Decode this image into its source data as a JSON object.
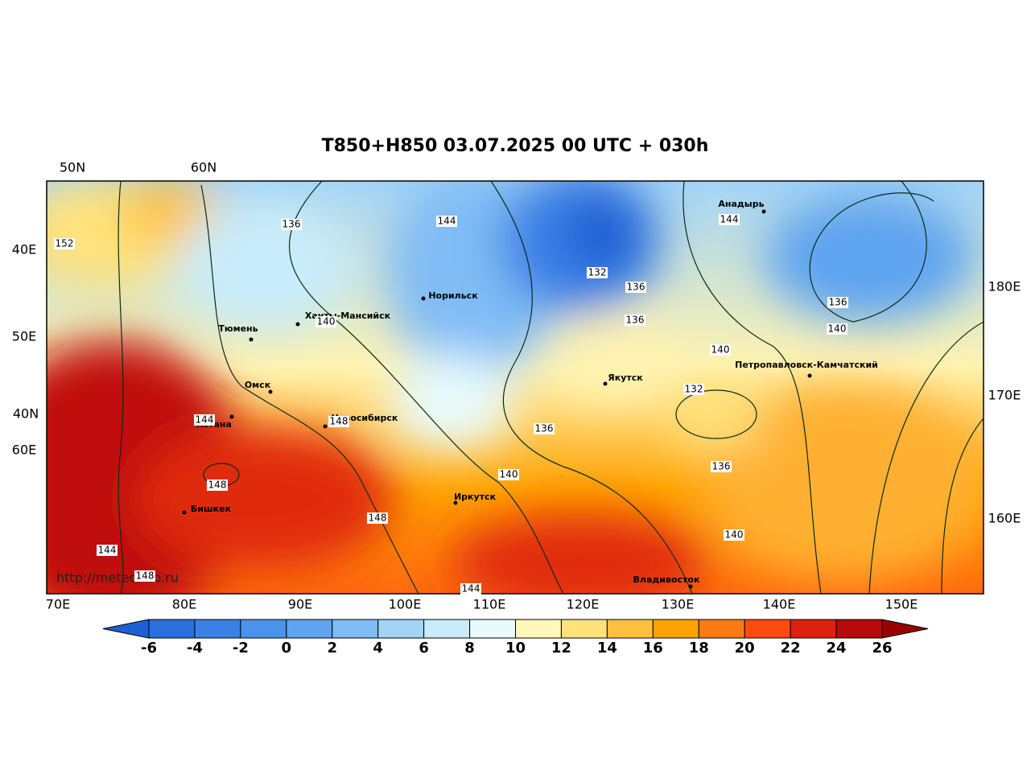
{
  "title": "T850+H850 03.07.2025 00 UTC + 030h",
  "url": "http://meteoinfo.ru",
  "axis_labels": {
    "top": [
      "50N",
      "60N"
    ],
    "left": [
      "40E",
      "50E",
      "40N",
      "60E"
    ],
    "right": [
      "180E",
      "170E",
      "160E"
    ],
    "bottom": [
      "70E",
      "80E",
      "90E",
      "100E",
      "110E",
      "120E",
      "130E",
      "140E",
      "150E"
    ]
  },
  "cities": [
    "Анадырь",
    "Норильск",
    "Ханты-Мансийск",
    "Тюмень",
    "Омск",
    "Новосибирск",
    "Астана",
    "Якутск",
    "Петропавловск-Камчатский",
    "Бишкек",
    "Иркутск",
    "Владивосток"
  ],
  "contour_labels": [
    "152",
    "136",
    "144",
    "132",
    "136",
    "136",
    "140",
    "140",
    "132",
    "144",
    "136",
    "140",
    "144",
    "148",
    "136",
    "140",
    "136",
    "148",
    "148",
    "140",
    "144",
    "148",
    "144"
  ],
  "colorbar": {
    "ticks": [
      -6,
      -4,
      -2,
      0,
      2,
      4,
      6,
      8,
      10,
      12,
      14,
      16,
      18,
      20,
      22,
      24,
      26
    ],
    "colors": [
      "#1e5fd4",
      "#2a6fdd",
      "#3a80e6",
      "#4a92ec",
      "#5fa4f0",
      "#80bcf5",
      "#a2d4f8",
      "#c8ecfb",
      "#e8fbfc",
      "#fff8b8",
      "#ffe27a",
      "#ffc040",
      "#ffa200",
      "#ff7a10",
      "#ff4a10",
      "#de2010",
      "#b80a0a",
      "#9a0000"
    ]
  }
}
